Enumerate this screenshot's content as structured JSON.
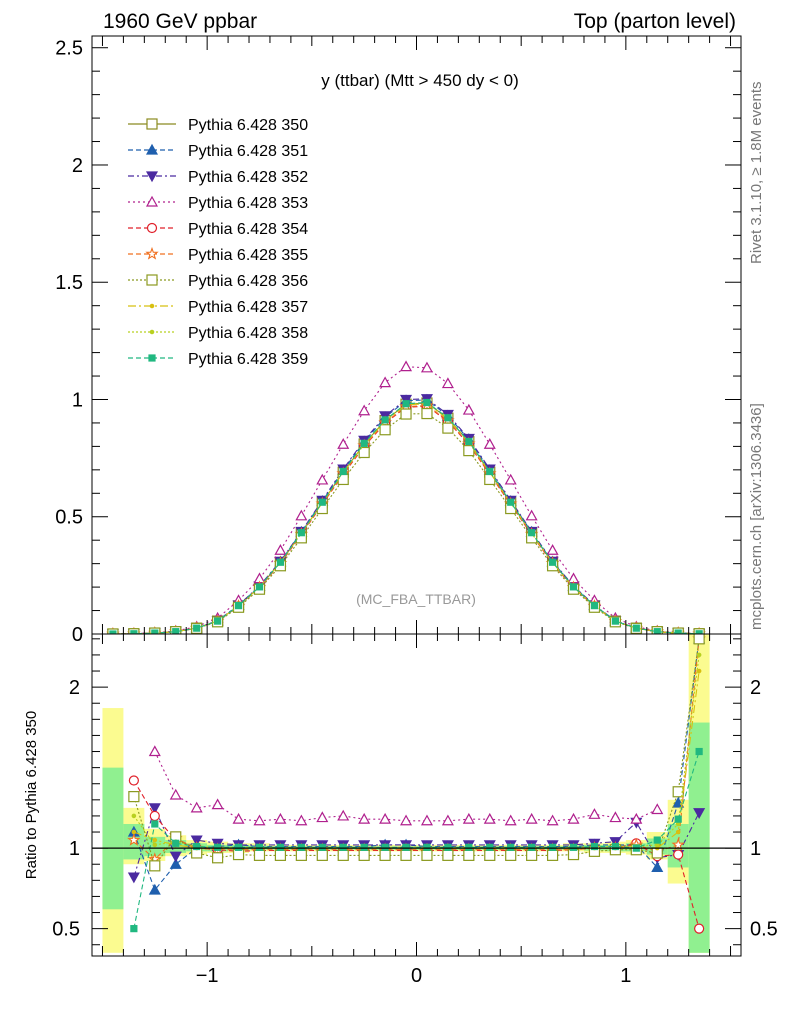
{
  "header": {
    "left": "1960 GeV ppbar",
    "right": "Top (parton level)"
  },
  "side_labels": {
    "rivet": "Rivet 3.1.10, ≥ 1.8M events",
    "mcplots": "mcplots.cern.ch [arXiv:1306.3436]"
  },
  "chart_data": [
    {
      "type": "line",
      "title": "y (ttbar) (Mtt > 450 dy < 0)",
      "watermark": "(MC_FBA_TTBAR)",
      "xlim": [
        -1.55,
        1.55
      ],
      "ylim": [
        0,
        2.55
      ],
      "yticks": [
        0,
        0.5,
        1,
        1.5,
        2,
        2.5
      ],
      "ytick_labels": [
        "0",
        "0.5",
        "1",
        "1.5",
        "2",
        "2.5"
      ],
      "x": [
        -1.45,
        -1.35,
        -1.25,
        -1.15,
        -1.05,
        -0.95,
        -0.85,
        -0.75,
        -0.65,
        -0.55,
        -0.45,
        -0.35,
        -0.25,
        -0.15,
        -0.05,
        0.05,
        0.15,
        0.25,
        0.35,
        0.45,
        0.55,
        0.65,
        0.75,
        0.85,
        0.95,
        1.05,
        1.15,
        1.25,
        1.35
      ],
      "series": [
        {
          "name": "Pythia 6.428 350",
          "color": "#8b8b20",
          "marker": "square-open",
          "dash": "",
          "values": [
            0.0,
            0.001,
            0.004,
            0.01,
            0.025,
            0.055,
            0.12,
            0.2,
            0.305,
            0.43,
            0.56,
            0.69,
            0.81,
            0.91,
            0.98,
            0.985,
            0.92,
            0.82,
            0.69,
            0.56,
            0.43,
            0.305,
            0.2,
            0.12,
            0.055,
            0.025,
            0.01,
            0.004,
            0.001
          ]
        },
        {
          "name": "Pythia 6.428 351",
          "color": "#1f5fae",
          "marker": "triangle-up",
          "dash": "5,3",
          "values": [
            0.0,
            0.001,
            0.003,
            0.009,
            0.025,
            0.056,
            0.122,
            0.203,
            0.308,
            0.435,
            0.566,
            0.698,
            0.82,
            0.924,
            0.995,
            0.998,
            0.93,
            0.83,
            0.698,
            0.566,
            0.435,
            0.308,
            0.203,
            0.122,
            0.056,
            0.025,
            0.009,
            0.003,
            0.001
          ]
        },
        {
          "name": "Pythia 6.428 352",
          "color": "#4b2aa0",
          "marker": "triangle-down",
          "dash": "6,3,2,3",
          "values": [
            0.001,
            0.001,
            0.005,
            0.011,
            0.026,
            0.057,
            0.123,
            0.205,
            0.31,
            0.437,
            0.57,
            0.703,
            0.826,
            0.93,
            1.0,
            1.003,
            0.936,
            0.834,
            0.703,
            0.57,
            0.437,
            0.31,
            0.205,
            0.123,
            0.057,
            0.026,
            0.011,
            0.005,
            0.001
          ]
        },
        {
          "name": "Pythia 6.428 353",
          "color": "#b0208e",
          "marker": "triangle-up-open",
          "dash": "2,3",
          "values": [
            0.0,
            0.002,
            0.005,
            0.013,
            0.031,
            0.068,
            0.143,
            0.236,
            0.357,
            0.504,
            0.657,
            0.809,
            0.952,
            1.072,
            1.14,
            1.135,
            1.068,
            0.955,
            0.809,
            0.657,
            0.504,
            0.357,
            0.236,
            0.143,
            0.068,
            0.031,
            0.013,
            0.005,
            0.001
          ]
        },
        {
          "name": "Pythia 6.428 354",
          "color": "#e0202a",
          "marker": "circle-open",
          "dash": "5,3",
          "values": [
            0.0,
            0.001,
            0.004,
            0.01,
            0.025,
            0.054,
            0.118,
            0.197,
            0.3,
            0.424,
            0.553,
            0.681,
            0.8,
            0.899,
            0.967,
            0.971,
            0.907,
            0.808,
            0.681,
            0.553,
            0.424,
            0.3,
            0.197,
            0.118,
            0.054,
            0.025,
            0.01,
            0.004,
            0.001
          ]
        },
        {
          "name": "Pythia 6.428 355",
          "color": "#f07020",
          "marker": "star-open",
          "dash": "5,3",
          "values": [
            0.0,
            0.001,
            0.004,
            0.01,
            0.025,
            0.054,
            0.119,
            0.198,
            0.302,
            0.426,
            0.555,
            0.684,
            0.803,
            0.902,
            0.97,
            0.974,
            0.91,
            0.811,
            0.684,
            0.555,
            0.426,
            0.302,
            0.198,
            0.119,
            0.054,
            0.025,
            0.01,
            0.004,
            0.001
          ]
        },
        {
          "name": "Pythia 6.428 356",
          "color": "#8b9a20",
          "marker": "square-open",
          "dash": "2,2",
          "values": [
            0.0,
            0.001,
            0.004,
            0.01,
            0.024,
            0.052,
            0.114,
            0.191,
            0.291,
            0.41,
            0.535,
            0.659,
            0.774,
            0.871,
            0.938,
            0.94,
            0.878,
            0.782,
            0.659,
            0.535,
            0.41,
            0.291,
            0.191,
            0.114,
            0.052,
            0.024,
            0.01,
            0.004,
            0.001
          ]
        },
        {
          "name": "Pythia 6.428 357",
          "color": "#d8c010",
          "marker": "dot",
          "dash": "8,3,2,3",
          "values": [
            0.0,
            0.001,
            0.004,
            0.01,
            0.025,
            0.055,
            0.12,
            0.2,
            0.304,
            0.429,
            0.559,
            0.689,
            0.808,
            0.908,
            0.977,
            0.982,
            0.917,
            0.817,
            0.689,
            0.559,
            0.429,
            0.304,
            0.2,
            0.12,
            0.055,
            0.025,
            0.01,
            0.004,
            0.001
          ]
        },
        {
          "name": "Pythia 6.428 358",
          "color": "#b8d020",
          "marker": "dot",
          "dash": "2,2",
          "values": [
            0.0,
            0.001,
            0.004,
            0.01,
            0.025,
            0.055,
            0.12,
            0.201,
            0.305,
            0.431,
            0.561,
            0.691,
            0.811,
            0.912,
            0.981,
            0.986,
            0.921,
            0.82,
            0.691,
            0.561,
            0.431,
            0.305,
            0.201,
            0.12,
            0.055,
            0.025,
            0.01,
            0.004,
            0.001
          ]
        },
        {
          "name": "Pythia 6.428 359",
          "color": "#20b880",
          "marker": "square",
          "dash": "5,3",
          "values": [
            0.0,
            0.001,
            0.004,
            0.01,
            0.025,
            0.055,
            0.121,
            0.201,
            0.306,
            0.432,
            0.562,
            0.693,
            0.813,
            0.913,
            0.982,
            0.987,
            0.922,
            0.821,
            0.693,
            0.562,
            0.432,
            0.306,
            0.201,
            0.121,
            0.055,
            0.025,
            0.01,
            0.004,
            0.001
          ]
        }
      ]
    },
    {
      "type": "line",
      "ylabel": "Ratio to Pythia 6.428 350",
      "xlim": [
        -1.55,
        1.55
      ],
      "ylim": [
        0.33,
        2.33
      ],
      "xticks": [
        -1,
        0,
        1
      ],
      "xtick_labels": [
        "−1",
        "0",
        "1"
      ],
      "yticks": [
        0.5,
        1,
        2
      ],
      "ytick_labels": [
        "0.5",
        "1",
        "2"
      ],
      "reference_line": 1,
      "band_yellow": [
        [
          0.35,
          1.87
        ],
        [
          0.9,
          1.25
        ],
        [
          0.92,
          1.12
        ],
        [
          0.95,
          1.08
        ],
        [
          0.96,
          1.05
        ],
        [
          0.97,
          1.04
        ],
        [
          0.97,
          1.03
        ],
        [
          0.98,
          1.03
        ],
        [
          0.98,
          1.02
        ],
        [
          0.98,
          1.02
        ],
        [
          0.98,
          1.02
        ],
        [
          0.98,
          1.02
        ],
        [
          0.98,
          1.02
        ],
        [
          0.98,
          1.02
        ],
        [
          0.98,
          1.02
        ],
        [
          0.98,
          1.02
        ],
        [
          0.98,
          1.02
        ],
        [
          0.98,
          1.02
        ],
        [
          0.98,
          1.02
        ],
        [
          0.98,
          1.02
        ],
        [
          0.98,
          1.02
        ],
        [
          0.98,
          1.02
        ],
        [
          0.98,
          1.03
        ],
        [
          0.97,
          1.03
        ],
        [
          0.97,
          1.04
        ],
        [
          0.96,
          1.05
        ],
        [
          0.93,
          1.1
        ],
        [
          0.78,
          1.3
        ],
        [
          0.35,
          2.33
        ]
      ],
      "band_green": [
        [
          0.62,
          1.5
        ],
        [
          0.93,
          1.15
        ],
        [
          0.95,
          1.07
        ],
        [
          0.97,
          1.05
        ],
        [
          0.98,
          1.03
        ],
        [
          0.98,
          1.02
        ],
        [
          0.985,
          1.02
        ],
        [
          0.99,
          1.015
        ],
        [
          0.99,
          1.01
        ],
        [
          0.99,
          1.01
        ],
        [
          0.99,
          1.01
        ],
        [
          0.99,
          1.01
        ],
        [
          0.99,
          1.01
        ],
        [
          0.99,
          1.01
        ],
        [
          0.99,
          1.01
        ],
        [
          0.99,
          1.01
        ],
        [
          0.99,
          1.01
        ],
        [
          0.99,
          1.01
        ],
        [
          0.99,
          1.01
        ],
        [
          0.99,
          1.01
        ],
        [
          0.99,
          1.01
        ],
        [
          0.99,
          1.01
        ],
        [
          0.99,
          1.015
        ],
        [
          0.985,
          1.02
        ],
        [
          0.98,
          1.02
        ],
        [
          0.98,
          1.03
        ],
        [
          0.96,
          1.06
        ],
        [
          0.88,
          1.15
        ],
        [
          0.35,
          1.78
        ]
      ],
      "series": [
        {
          "name": "Pythia 6.428 351",
          "values": [
            null,
            1.1,
            0.74,
            0.9,
            1.0,
            1.01,
            1.02,
            1.01,
            1.01,
            1.01,
            1.01,
            1.01,
            1.01,
            1.02,
            1.02,
            1.01,
            1.01,
            1.01,
            1.01,
            1.01,
            1.01,
            1.01,
            1.01,
            1.02,
            1.02,
            1.02,
            0.88,
            1.28,
            2.3
          ]
        },
        {
          "name": "Pythia 6.428 352",
          "values": [
            null,
            0.82,
            1.25,
            0.95,
            1.05,
            1.03,
            1.02,
            1.02,
            1.02,
            1.02,
            1.02,
            1.02,
            1.02,
            1.02,
            1.02,
            1.02,
            1.02,
            1.02,
            1.02,
            1.02,
            1.02,
            1.02,
            1.02,
            1.03,
            1.04,
            1.16,
            0.94,
            0.96,
            1.22
          ]
        },
        {
          "name": "Pythia 6.428 353",
          "values": [
            null,
            null,
            1.6,
            1.33,
            1.25,
            1.27,
            1.18,
            1.17,
            1.18,
            1.17,
            1.19,
            1.2,
            1.18,
            1.18,
            1.17,
            1.17,
            1.17,
            1.18,
            1.18,
            1.17,
            1.18,
            1.17,
            1.18,
            1.21,
            1.19,
            1.18,
            1.24,
            null,
            null
          ]
        },
        {
          "name": "Pythia 6.428 354",
          "values": [
            null,
            1.42,
            1.2,
            1.05,
            1.0,
            0.99,
            0.98,
            0.985,
            0.985,
            0.985,
            0.985,
            0.985,
            0.985,
            0.985,
            0.985,
            0.985,
            0.985,
            0.985,
            0.985,
            0.985,
            0.985,
            0.985,
            0.99,
            1.0,
            1.0,
            1.03,
            0.95,
            0.96,
            0.5
          ]
        },
        {
          "name": "Pythia 6.428 355",
          "values": [
            null,
            1.05,
            0.93,
            1.06,
            1.0,
            0.99,
            0.99,
            0.99,
            0.99,
            0.99,
            0.99,
            0.99,
            0.99,
            0.99,
            0.99,
            0.99,
            0.99,
            0.99,
            0.99,
            0.99,
            0.99,
            0.99,
            0.99,
            1.0,
            1.0,
            1.02,
            0.98,
            1.02,
            2.3
          ]
        },
        {
          "name": "Pythia 6.428 356",
          "values": [
            null,
            1.32,
            0.89,
            1.07,
            0.97,
            0.94,
            0.96,
            0.955,
            0.955,
            0.955,
            0.955,
            0.955,
            0.955,
            0.955,
            0.955,
            0.955,
            0.955,
            0.955,
            0.955,
            0.955,
            0.955,
            0.955,
            0.96,
            0.98,
            0.99,
            0.99,
            0.97,
            1.35,
            2.3
          ]
        },
        {
          "name": "Pythia 6.428 357",
          "values": [
            null,
            1.1,
            1.05,
            1.02,
            1.0,
            1.0,
            1.0,
            1.0,
            1.0,
            1.0,
            1.0,
            1.0,
            1.0,
            1.0,
            1.0,
            1.0,
            1.0,
            1.0,
            1.0,
            1.0,
            1.0,
            1.0,
            1.0,
            1.0,
            1.0,
            1.0,
            1.0,
            1.1,
            2.1
          ]
        },
        {
          "name": "Pythia 6.428 358",
          "values": [
            null,
            1.2,
            1.02,
            1.04,
            1.01,
            1.005,
            1.005,
            1.005,
            1.005,
            1.005,
            1.005,
            1.005,
            1.005,
            1.005,
            1.005,
            1.005,
            1.005,
            1.005,
            1.005,
            1.005,
            1.005,
            1.005,
            1.005,
            1.01,
            1.01,
            1.01,
            1.02,
            1.15,
            2.2
          ]
        },
        {
          "name": "Pythia 6.428 359",
          "values": [
            null,
            0.5,
            1.15,
            1.03,
            1.01,
            1.005,
            1.005,
            1.005,
            1.005,
            1.005,
            1.005,
            1.005,
            1.005,
            1.005,
            1.005,
            1.005,
            1.005,
            1.005,
            1.005,
            1.005,
            1.005,
            1.005,
            1.005,
            1.01,
            1.01,
            1.0,
            1.05,
            1.18,
            1.6
          ]
        }
      ]
    }
  ]
}
